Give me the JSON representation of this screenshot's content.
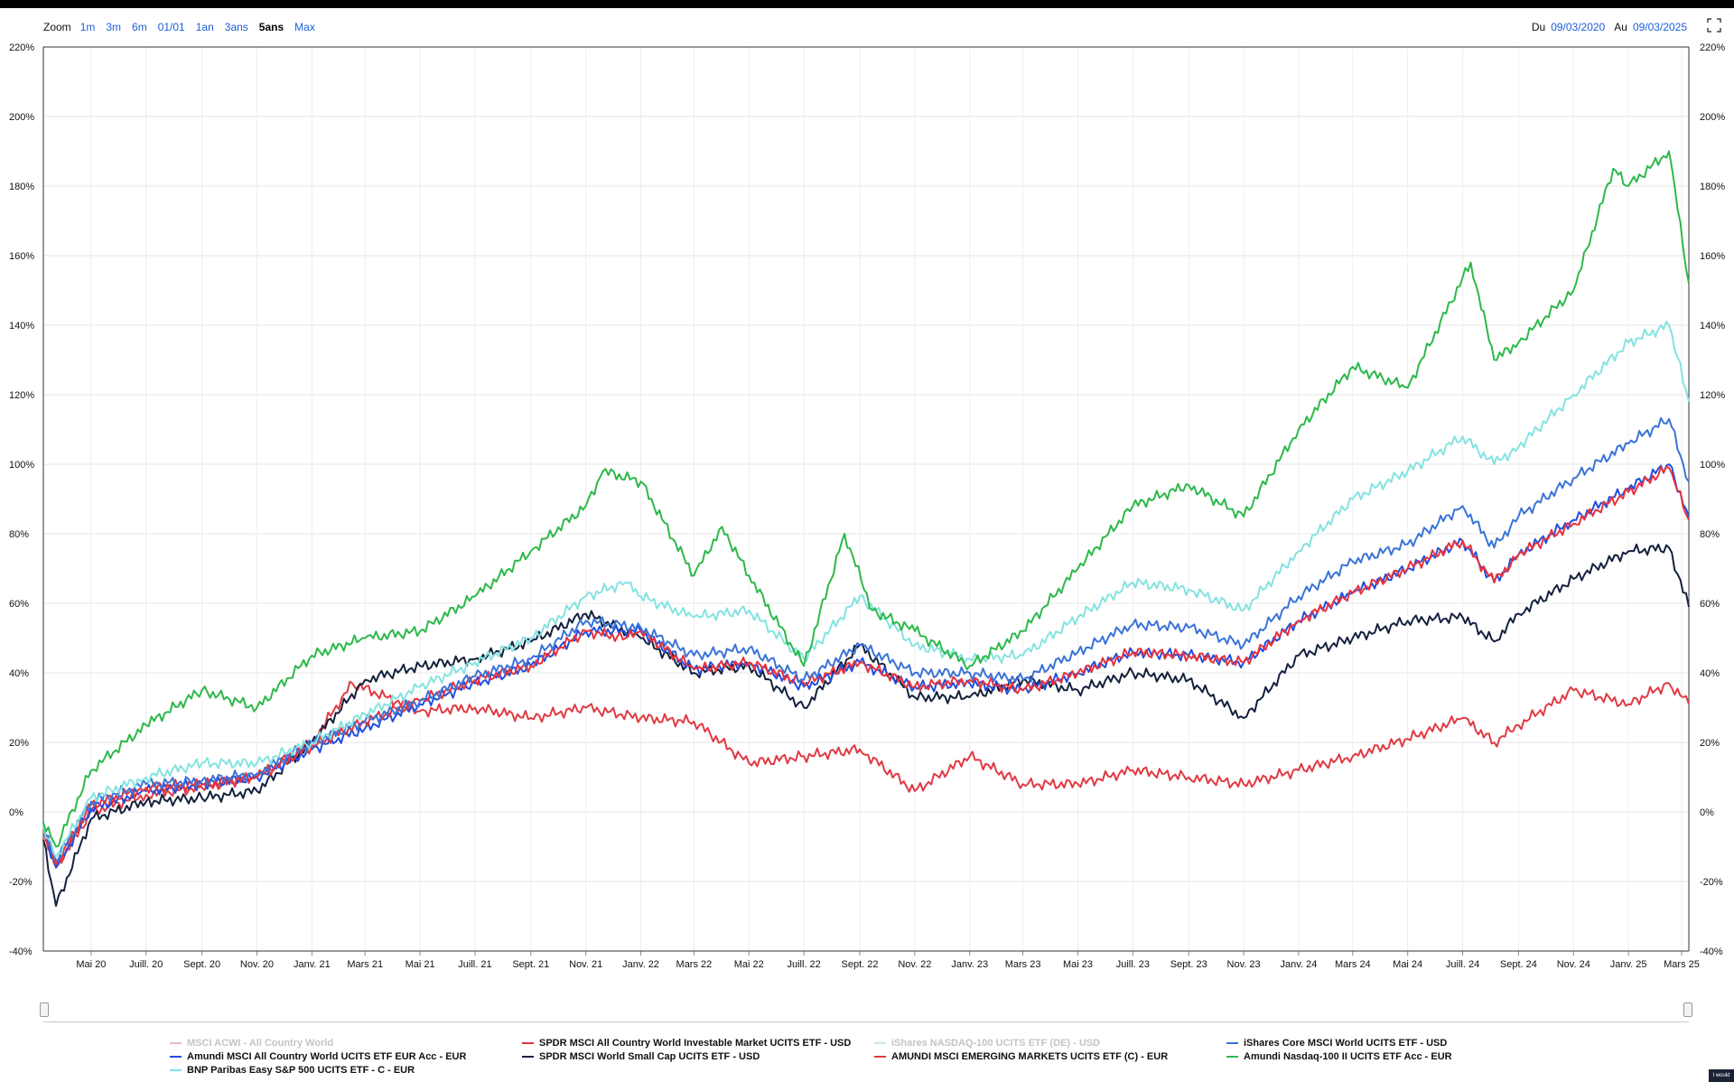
{
  "toolbar": {
    "zoom_label": "Zoom",
    "zoom_buttons": [
      "1m",
      "3m",
      "6m",
      "01/01",
      "1an",
      "3ans",
      "5ans",
      "Max"
    ],
    "active_zoom": "5ans",
    "from_label": "Du",
    "from_date": "09/03/2020",
    "to_label": "Au",
    "to_date": "09/03/2025"
  },
  "fullscreen_icon": "expand-icon",
  "corner_badge": "I would",
  "chart_data": {
    "type": "line",
    "title": "",
    "xlabel": "",
    "ylabel": "",
    "ylim": [
      -40,
      220
    ],
    "y_ticks": [
      "220%",
      "200%",
      "180%",
      "160%",
      "140%",
      "120%",
      "100%",
      "80%",
      "60%",
      "40%",
      "20%",
      "0%",
      "-20%",
      "-40%"
    ],
    "y_tick_values": [
      220,
      200,
      180,
      160,
      140,
      120,
      100,
      80,
      60,
      40,
      20,
      0,
      -20,
      -40
    ],
    "x_range": [
      "2020-03-09",
      "2025-03-09"
    ],
    "x_ticks": [
      {
        "label": "Mai 20",
        "date": "2020-05-01"
      },
      {
        "label": "Juill. 20",
        "date": "2020-07-01"
      },
      {
        "label": "Sept. 20",
        "date": "2020-09-01"
      },
      {
        "label": "Nov. 20",
        "date": "2020-11-01"
      },
      {
        "label": "Janv. 21",
        "date": "2021-01-01"
      },
      {
        "label": "Mars 21",
        "date": "2021-03-01"
      },
      {
        "label": "Mai 21",
        "date": "2021-05-01"
      },
      {
        "label": "Juill. 21",
        "date": "2021-07-01"
      },
      {
        "label": "Sept. 21",
        "date": "2021-09-01"
      },
      {
        "label": "Nov. 21",
        "date": "2021-11-01"
      },
      {
        "label": "Janv. 22",
        "date": "2022-01-01"
      },
      {
        "label": "Mars 22",
        "date": "2022-03-01"
      },
      {
        "label": "Mai 22",
        "date": "2022-05-01"
      },
      {
        "label": "Juill. 22",
        "date": "2022-07-01"
      },
      {
        "label": "Sept. 22",
        "date": "2022-09-01"
      },
      {
        "label": "Nov. 22",
        "date": "2022-11-01"
      },
      {
        "label": "Janv. 23",
        "date": "2023-01-01"
      },
      {
        "label": "Mars 23",
        "date": "2023-03-01"
      },
      {
        "label": "Mai 23",
        "date": "2023-05-01"
      },
      {
        "label": "Juill. 23",
        "date": "2023-07-01"
      },
      {
        "label": "Sept. 23",
        "date": "2023-09-01"
      },
      {
        "label": "Nov. 23",
        "date": "2023-11-01"
      },
      {
        "label": "Janv. 24",
        "date": "2024-01-01"
      },
      {
        "label": "Mars 24",
        "date": "2024-03-01"
      },
      {
        "label": "Mai 24",
        "date": "2024-05-01"
      },
      {
        "label": "Juill. 24",
        "date": "2024-07-01"
      },
      {
        "label": "Sept. 24",
        "date": "2024-09-01"
      },
      {
        "label": "Nov. 24",
        "date": "2024-11-01"
      },
      {
        "label": "Janv. 25",
        "date": "2025-01-01"
      },
      {
        "label": "Mars 25",
        "date": "2025-03-01"
      }
    ],
    "grid": true,
    "legend_position": "bottom",
    "series": [
      {
        "name": "MSCI ACWI - All Country World",
        "color": "#f0b8b8",
        "visible": false,
        "x": [],
        "y": []
      },
      {
        "name": "SPDR MSCI All Country World Investable Market UCITS ETF - USD",
        "color": "#e8323c",
        "visible": true,
        "x": [
          "2020-03-09",
          "2020-03-23",
          "2020-05-01",
          "2020-07-01",
          "2020-09-01",
          "2020-11-01",
          "2021-01-01",
          "2021-03-01",
          "2021-05-01",
          "2021-07-01",
          "2021-09-01",
          "2021-11-01",
          "2021-12-15",
          "2022-01-01",
          "2022-03-01",
          "2022-05-01",
          "2022-07-01",
          "2022-09-01",
          "2022-11-01",
          "2023-01-01",
          "2023-03-01",
          "2023-05-01",
          "2023-07-01",
          "2023-09-01",
          "2023-11-01",
          "2024-01-01",
          "2024-03-01",
          "2024-05-01",
          "2024-07-01",
          "2024-08-05",
          "2024-09-01",
          "2024-11-01",
          "2025-01-01",
          "2025-02-15",
          "2025-03-09"
        ],
        "y": [
          -5,
          -15,
          2,
          7,
          8,
          10,
          19,
          26,
          32,
          38,
          42,
          52,
          50,
          52,
          41,
          43,
          37,
          43,
          36,
          38,
          35,
          40,
          46,
          45,
          43,
          55,
          63,
          70,
          78,
          66,
          74,
          83,
          92,
          99,
          84
        ]
      },
      {
        "name": "iShares NASDAQ-100 UCITS ETF (DE) - USD",
        "color": "#cfe6f0",
        "visible": false,
        "x": [],
        "y": []
      },
      {
        "name": "iShares Core MSCI World UCITS ETF - USD",
        "color": "#3a73d8",
        "visible": true,
        "x": [
          "2020-03-09",
          "2020-03-23",
          "2020-05-01",
          "2020-07-01",
          "2020-09-01",
          "2020-11-01",
          "2021-01-01",
          "2021-03-01",
          "2021-05-01",
          "2021-07-01",
          "2021-09-01",
          "2021-11-01",
          "2022-01-01",
          "2022-03-01",
          "2022-05-01",
          "2022-07-01",
          "2022-09-01",
          "2022-11-01",
          "2023-01-01",
          "2023-03-01",
          "2023-05-01",
          "2023-07-01",
          "2023-09-01",
          "2023-11-01",
          "2024-01-01",
          "2024-03-01",
          "2024-05-01",
          "2024-07-01",
          "2024-08-05",
          "2024-09-01",
          "2024-11-01",
          "2025-01-01",
          "2025-02-15",
          "2025-03-09"
        ],
        "y": [
          -5,
          -14,
          3,
          8,
          9,
          11,
          20,
          26,
          32,
          39,
          44,
          55,
          53,
          45,
          47,
          38,
          48,
          40,
          40,
          38,
          46,
          54,
          53,
          48,
          62,
          72,
          77,
          88,
          76,
          85,
          96,
          106,
          113,
          95
        ]
      },
      {
        "name": "Amundi MSCI All Country World UCITS ETF EUR Acc - EUR",
        "color": "#1f4fe0",
        "visible": true,
        "x": [
          "2020-03-09",
          "2020-03-23",
          "2020-05-01",
          "2020-07-01",
          "2020-09-01",
          "2020-11-01",
          "2021-01-01",
          "2021-03-01",
          "2021-05-01",
          "2021-07-01",
          "2021-09-01",
          "2021-11-01",
          "2022-01-01",
          "2022-03-01",
          "2022-05-01",
          "2022-07-01",
          "2022-09-01",
          "2022-11-01",
          "2023-01-01",
          "2023-03-01",
          "2023-05-01",
          "2023-07-01",
          "2023-09-01",
          "2023-11-01",
          "2024-01-01",
          "2024-03-01",
          "2024-05-01",
          "2024-07-01",
          "2024-08-05",
          "2024-09-01",
          "2024-11-01",
          "2025-01-01",
          "2025-02-15",
          "2025-03-09"
        ],
        "y": [
          -6,
          -16,
          1,
          6,
          8,
          10,
          18,
          24,
          31,
          37,
          42,
          52,
          52,
          41,
          43,
          36,
          43,
          36,
          37,
          35,
          40,
          46,
          45,
          43,
          55,
          63,
          70,
          78,
          66,
          74,
          84,
          93,
          100,
          85
        ]
      },
      {
        "name": "SPDR MSCI World Small Cap UCITS ETF - USD",
        "color": "#14213d",
        "visible": true,
        "x": [
          "2020-03-09",
          "2020-03-23",
          "2020-05-01",
          "2020-07-01",
          "2020-09-01",
          "2020-11-01",
          "2021-01-01",
          "2021-03-01",
          "2021-05-01",
          "2021-07-01",
          "2021-09-01",
          "2021-11-01",
          "2022-01-01",
          "2022-03-01",
          "2022-05-01",
          "2022-07-01",
          "2022-09-01",
          "2022-11-01",
          "2023-01-01",
          "2023-03-01",
          "2023-05-01",
          "2023-07-01",
          "2023-09-01",
          "2023-11-01",
          "2024-01-01",
          "2024-03-01",
          "2024-05-01",
          "2024-07-01",
          "2024-08-05",
          "2024-09-01",
          "2024-11-01",
          "2025-01-01",
          "2025-02-15",
          "2025-03-09"
        ],
        "y": [
          -8,
          -27,
          -2,
          3,
          4,
          6,
          20,
          38,
          42,
          44,
          49,
          57,
          50,
          40,
          42,
          30,
          48,
          33,
          33,
          38,
          35,
          40,
          38,
          27,
          45,
          50,
          55,
          56,
          49,
          57,
          67,
          75,
          76,
          59
        ]
      },
      {
        "name": "AMUNDI MSCI EMERGING MARKETS UCITS ETF (C) - EUR",
        "color": "#e03a44",
        "visible": true,
        "x": [
          "2020-03-09",
          "2020-03-23",
          "2020-05-01",
          "2020-07-01",
          "2020-09-01",
          "2020-11-01",
          "2021-01-01",
          "2021-02-15",
          "2021-05-01",
          "2021-07-01",
          "2021-09-01",
          "2021-11-01",
          "2022-01-01",
          "2022-03-01",
          "2022-05-01",
          "2022-07-01",
          "2022-09-01",
          "2022-11-01",
          "2023-01-01",
          "2023-03-01",
          "2023-05-01",
          "2023-07-01",
          "2023-09-01",
          "2023-11-01",
          "2024-01-01",
          "2024-03-01",
          "2024-05-01",
          "2024-07-01",
          "2024-08-05",
          "2024-09-01",
          "2024-11-01",
          "2025-01-01",
          "2025-02-15",
          "2025-03-09"
        ],
        "y": [
          -5,
          -16,
          0,
          5,
          7,
          10,
          20,
          37,
          29,
          30,
          27,
          30,
          27,
          26,
          14,
          16,
          18,
          6,
          16,
          8,
          8,
          12,
          10,
          8,
          12,
          16,
          21,
          27,
          20,
          25,
          35,
          31,
          37,
          31
        ]
      },
      {
        "name": "BNP Paribas Easy S&P 500 UCITS ETF - C - EUR",
        "color": "#84e3e0",
        "visible": true,
        "x": [
          "2020-03-09",
          "2020-03-23",
          "2020-05-01",
          "2020-07-01",
          "2020-09-01",
          "2020-11-01",
          "2021-01-01",
          "2021-03-01",
          "2021-05-01",
          "2021-07-01",
          "2021-09-01",
          "2021-11-01",
          "2021-12-15",
          "2022-01-01",
          "2022-03-01",
          "2022-05-01",
          "2022-07-01",
          "2022-09-01",
          "2022-11-01",
          "2023-01-01",
          "2023-03-01",
          "2023-05-01",
          "2023-07-01",
          "2023-09-01",
          "2023-11-01",
          "2024-01-01",
          "2024-03-01",
          "2024-05-01",
          "2024-07-01",
          "2024-08-05",
          "2024-09-01",
          "2024-11-01",
          "2025-01-01",
          "2025-02-15",
          "2025-03-09"
        ],
        "y": [
          -4,
          -13,
          4,
          10,
          14,
          14,
          20,
          28,
          36,
          43,
          50,
          62,
          66,
          62,
          56,
          58,
          44,
          62,
          48,
          44,
          45,
          56,
          66,
          64,
          58,
          75,
          90,
          98,
          108,
          100,
          105,
          120,
          135,
          140,
          118
        ]
      },
      {
        "name": "Amundi Nasdaq-100 II UCITS ETF Acc - EUR",
        "color": "#2db84a",
        "visible": true,
        "x": [
          "2020-03-09",
          "2020-03-23",
          "2020-05-01",
          "2020-07-01",
          "2020-09-01",
          "2020-11-01",
          "2021-01-01",
          "2021-03-01",
          "2021-05-01",
          "2021-07-01",
          "2021-09-01",
          "2021-11-01",
          "2021-11-20",
          "2022-01-01",
          "2022-03-01",
          "2022-04-01",
          "2022-05-01",
          "2022-07-01",
          "2022-08-15",
          "2022-09-15",
          "2022-11-01",
          "2023-01-01",
          "2023-03-01",
          "2023-05-01",
          "2023-07-01",
          "2023-09-01",
          "2023-11-01",
          "2024-01-01",
          "2024-03-01",
          "2024-05-01",
          "2024-07-10",
          "2024-08-05",
          "2024-09-01",
          "2024-11-01",
          "2024-12-15",
          "2025-01-01",
          "2025-02-15",
          "2025-03-09"
        ],
        "y": [
          -3,
          -10,
          12,
          25,
          35,
          30,
          45,
          50,
          52,
          62,
          75,
          88,
          98,
          95,
          68,
          82,
          68,
          42,
          80,
          58,
          52,
          42,
          52,
          70,
          88,
          94,
          85,
          110,
          128,
          122,
          158,
          130,
          135,
          150,
          185,
          180,
          190,
          152
        ]
      }
    ]
  }
}
